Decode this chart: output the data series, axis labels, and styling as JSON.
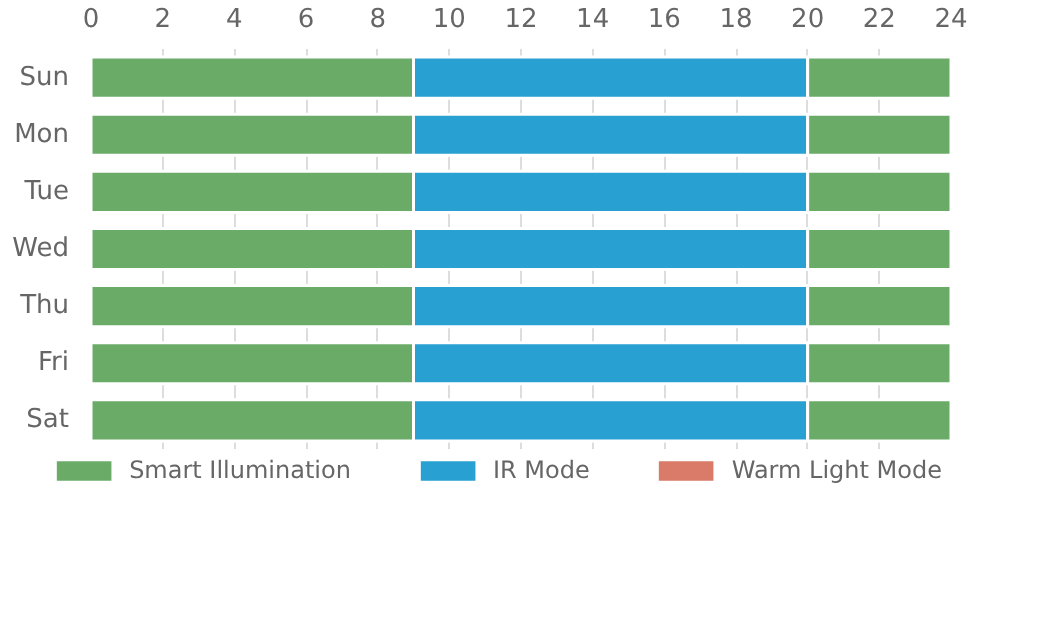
{
  "chart_data": {
    "type": "bar",
    "orientation": "horizontal",
    "stacked": true,
    "categories": [
      "Sun",
      "Mon",
      "Tue",
      "Wed",
      "Thu",
      "Fri",
      "Sat"
    ],
    "series": [
      {
        "name": "Smart Illumination",
        "color": "#6aab68",
        "values": [
          9,
          9,
          9,
          9,
          9,
          9,
          9
        ]
      },
      {
        "name": "IR Mode",
        "color": "#29a0d2",
        "values": [
          11,
          11,
          11,
          11,
          11,
          11,
          11
        ]
      },
      {
        "color": "#6aab68",
        "values": [
          4,
          4,
          4,
          4,
          4,
          4,
          4
        ]
      },
      {
        "name": "Warm Light Mode",
        "color": "#d97b68",
        "values": [
          null,
          null,
          null,
          null,
          null,
          null,
          null
        ]
      }
    ],
    "xlim": [
      0,
      24
    ],
    "xticks": [
      0,
      2,
      4,
      6,
      8,
      10,
      12,
      14,
      16,
      18,
      20,
      22,
      24
    ],
    "grid": "x",
    "legend": "bottom"
  }
}
